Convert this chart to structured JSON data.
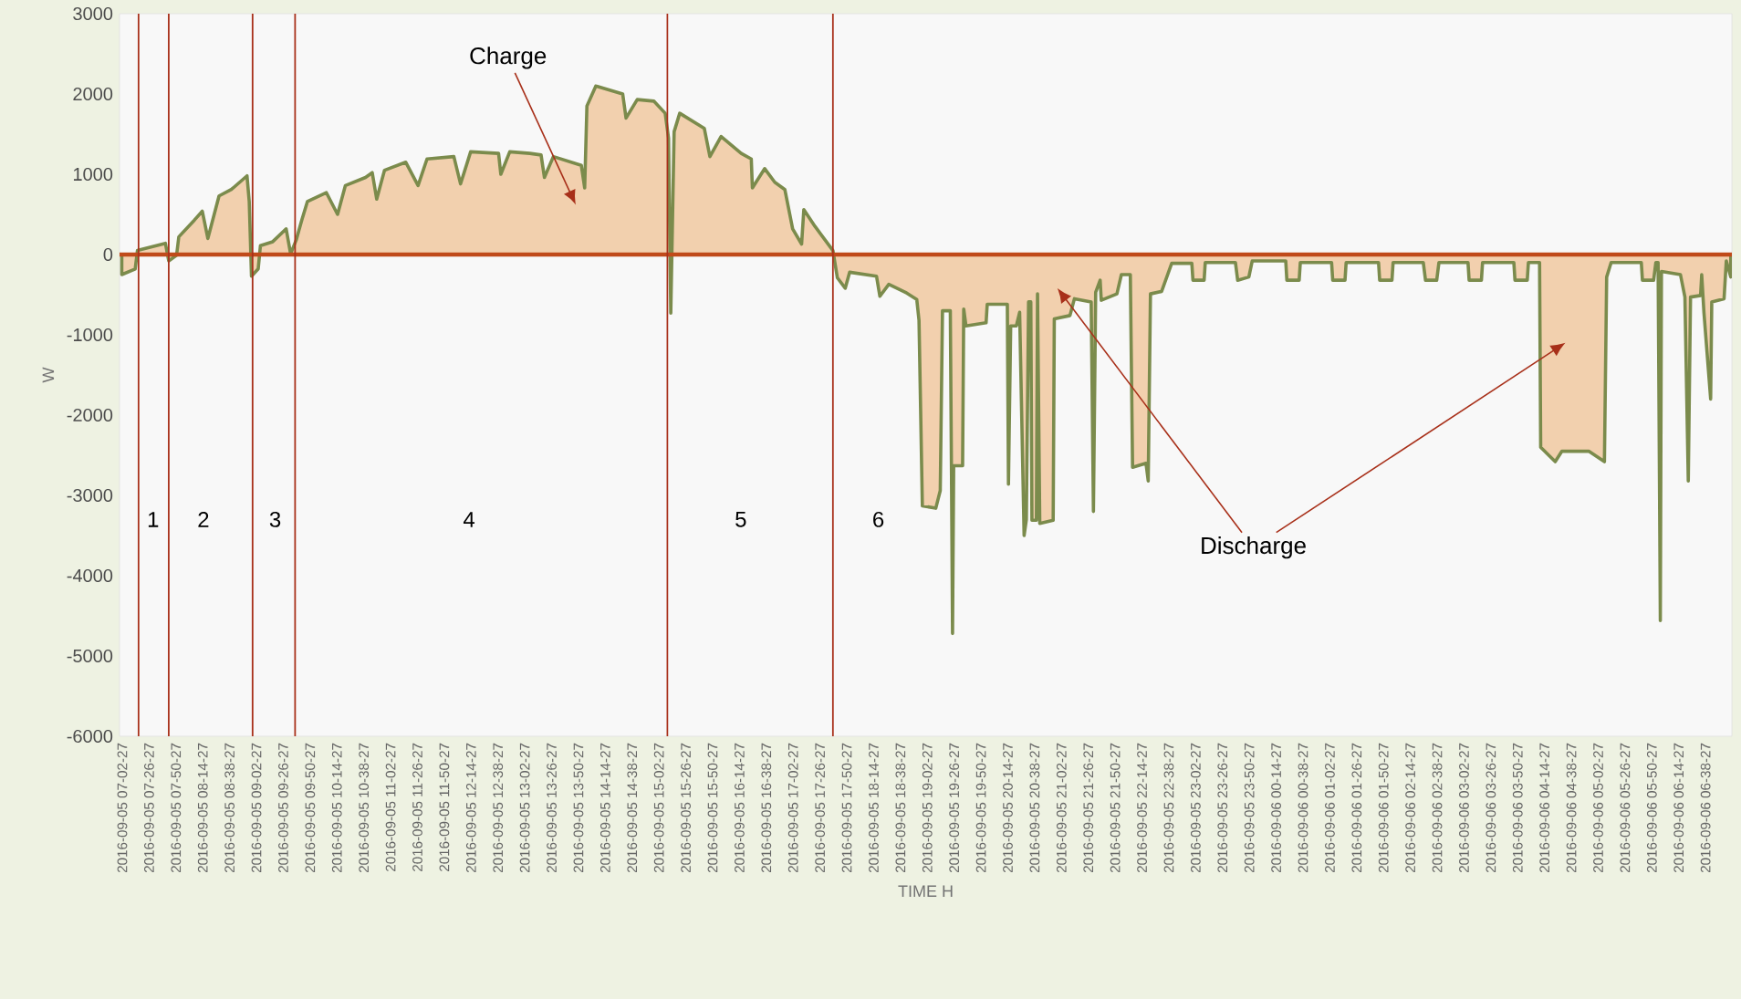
{
  "chart_data": {
    "type": "area",
    "xlabel": "TIME H",
    "ylabel": "W",
    "xlim": [
      "2016-09-05T07:00",
      "2016-09-06T07:02"
    ],
    "ylim": [
      -6000,
      3000
    ],
    "yticks": [
      -6000,
      -5000,
      -4000,
      -3000,
      -2000,
      -1000,
      0,
      1000,
      2000,
      3000
    ],
    "xticks": [
      {
        "value": "2016-09-05T07:02:27",
        "label": "2016-09-05 07-02-27"
      },
      {
        "value": "2016-09-05T07:26:27",
        "label": "2016-09-05 07-26-27"
      },
      {
        "value": "2016-09-05T07:50:27",
        "label": "2016-09-05 07-50-27"
      },
      {
        "value": "2016-09-05T08:14:27",
        "label": "2016-09-05 08-14-27"
      },
      {
        "value": "2016-09-05T08:38:27",
        "label": "2016-09-05 08-38-27"
      },
      {
        "value": "2016-09-05T09:02:27",
        "label": "2016-09-05 09-02-27"
      },
      {
        "value": "2016-09-05T09:26:27",
        "label": "2016-09-05 09-26-27"
      },
      {
        "value": "2016-09-05T09:50:27",
        "label": "2016-09-05 09-50-27"
      },
      {
        "value": "2016-09-05T10:14:27",
        "label": "2016-09-05 10-14-27"
      },
      {
        "value": "2016-09-05T10:38:27",
        "label": "2016-09-05 10-38-27"
      },
      {
        "value": "2016-09-05T11:02:27",
        "label": "2016-09-05 11-02-27"
      },
      {
        "value": "2016-09-05T11:26:27",
        "label": "2016-09-05 11-26-27"
      },
      {
        "value": "2016-09-05T11:50:27",
        "label": "2016-09-05 11-50-27"
      },
      {
        "value": "2016-09-05T12:14:27",
        "label": "2016-09-05 12-14-27"
      },
      {
        "value": "2016-09-05T12:38:27",
        "label": "2016-09-05 12-38-27"
      },
      {
        "value": "2016-09-05T13:02:27",
        "label": "2016-09-05 13-02-27"
      },
      {
        "value": "2016-09-05T13:26:27",
        "label": "2016-09-05 13-26-27"
      },
      {
        "value": "2016-09-05T13:50:27",
        "label": "2016-09-05 13-50-27"
      },
      {
        "value": "2016-09-05T14:14:27",
        "label": "2016-09-05 14-14-27"
      },
      {
        "value": "2016-09-05T14:38:27",
        "label": "2016-09-05 14-38-27"
      },
      {
        "value": "2016-09-05T15:02:27",
        "label": "2016-09-05 15-02-27"
      },
      {
        "value": "2016-09-05T15:26:27",
        "label": "2016-09-05 15-26-27"
      },
      {
        "value": "2016-09-05T15:50:27",
        "label": "2016-09-05 15-50-27"
      },
      {
        "value": "2016-09-05T16:14:27",
        "label": "2016-09-05 16-14-27"
      },
      {
        "value": "2016-09-05T16:38:27",
        "label": "2016-09-05 16-38-27"
      },
      {
        "value": "2016-09-05T17:02:27",
        "label": "2016-09-05 17-02-27"
      },
      {
        "value": "2016-09-05T17:26:27",
        "label": "2016-09-05 17-26-27"
      },
      {
        "value": "2016-09-05T17:50:27",
        "label": "2016-09-05 17-50-27"
      },
      {
        "value": "2016-09-05T18:14:27",
        "label": "2016-09-05 18-14-27"
      },
      {
        "value": "2016-09-05T18:38:27",
        "label": "2016-09-05 18-38-27"
      },
      {
        "value": "2016-09-05T19:02:27",
        "label": "2016-09-05 19-02-27"
      },
      {
        "value": "2016-09-05T19:26:27",
        "label": "2016-09-05 19-26-27"
      },
      {
        "value": "2016-09-05T19:50:27",
        "label": "2016-09-05 19-50-27"
      },
      {
        "value": "2016-09-05T20:14:27",
        "label": "2016-09-05 20-14-27"
      },
      {
        "value": "2016-09-05T20:38:27",
        "label": "2016-09-05 20-38-27"
      },
      {
        "value": "2016-09-05T21:02:27",
        "label": "2016-09-05 21-02-27"
      },
      {
        "value": "2016-09-05T21:26:27",
        "label": "2016-09-05 21-26-27"
      },
      {
        "value": "2016-09-05T21:50:27",
        "label": "2016-09-05 21-50-27"
      },
      {
        "value": "2016-09-05T22:14:27",
        "label": "2016-09-05 22-14-27"
      },
      {
        "value": "2016-09-05T22:38:27",
        "label": "2016-09-05 22-38-27"
      },
      {
        "value": "2016-09-05T23:02:27",
        "label": "2016-09-05 23-02-27"
      },
      {
        "value": "2016-09-05T23:26:27",
        "label": "2016-09-05 23-26-27"
      },
      {
        "value": "2016-09-05T23:50:27",
        "label": "2016-09-05 23-50-27"
      },
      {
        "value": "2016-09-06T00:14:27",
        "label": "2016-09-06 00-14-27"
      },
      {
        "value": "2016-09-06T00:38:27",
        "label": "2016-09-06 00-38-27"
      },
      {
        "value": "2016-09-06T01:02:27",
        "label": "2016-09-06 01-02-27"
      },
      {
        "value": "2016-09-06T01:26:27",
        "label": "2016-09-06 01-26-27"
      },
      {
        "value": "2016-09-06T01:50:27",
        "label": "2016-09-06 01-50-27"
      },
      {
        "value": "2016-09-06T02:14:27",
        "label": "2016-09-06 02-14-27"
      },
      {
        "value": "2016-09-06T02:38:27",
        "label": "2016-09-06 02-38-27"
      },
      {
        "value": "2016-09-06T03:02:27",
        "label": "2016-09-06 03-02-27"
      },
      {
        "value": "2016-09-06T03:26:27",
        "label": "2016-09-06 03-26-27"
      },
      {
        "value": "2016-09-06T03:50:27",
        "label": "2016-09-06 03-50-27"
      },
      {
        "value": "2016-09-06T04:14:27",
        "label": "2016-09-06 04-14-27"
      },
      {
        "value": "2016-09-06T04:38:27",
        "label": "2016-09-06 04-38-27"
      },
      {
        "value": "2016-09-06T05:02:27",
        "label": "2016-09-06 05-02-27"
      },
      {
        "value": "2016-09-06T05:26:27",
        "label": "2016-09-06 05-26-27"
      },
      {
        "value": "2016-09-06T05:50:27",
        "label": "2016-09-06 05-50-27"
      },
      {
        "value": "2016-09-06T06:14:27",
        "label": "2016-09-06 06-14-27"
      },
      {
        "value": "2016-09-06T06:38:27",
        "label": "2016-09-06 06-38-27"
      }
    ],
    "series": [
      {
        "color": "#f2d0ae",
        "x": [
          "2016-09-05T07:02",
          "2016-09-05T07:14",
          "2016-09-05T07:16",
          "2016-09-05T07:41",
          "2016-09-05T07:44",
          "2016-09-05T07:51",
          "2016-09-05T07:53",
          "2016-09-05T08:07",
          "2016-09-05T08:14",
          "2016-09-05T08:19",
          "2016-09-05T08:29",
          "2016-09-05T08:40",
          "2016-09-05T08:54",
          "2016-09-05T08:56",
          "2016-09-05T08:58",
          "2016-09-05T09:04",
          "2016-09-05T09:06",
          "2016-09-05T09:17",
          "2016-09-05T09:29",
          "2016-09-05T09:33",
          "2016-09-05T09:38",
          "2016-09-05T09:43",
          "2016-09-05T09:48",
          "2016-09-05T10:05",
          "2016-09-05T10:15",
          "2016-09-05T10:22",
          "2016-09-05T10:40",
          "2016-09-05T10:46",
          "2016-09-05T10:50",
          "2016-09-05T10:57",
          "2016-09-05T11:16",
          "2016-09-05T11:27",
          "2016-09-05T11:35",
          "2016-09-05T11:59",
          "2016-09-05T12:05",
          "2016-09-05T12:14",
          "2016-09-05T12:39",
          "2016-09-05T12:41",
          "2016-09-05T12:49",
          "2016-09-05T13:07",
          "2016-09-05T13:17",
          "2016-09-05T13:20",
          "2016-09-05T13:28",
          "2016-09-05T13:53",
          "2016-09-05T13:56",
          "2016-09-05T13:58",
          "2016-09-05T14:06",
          "2016-09-05T14:30",
          "2016-09-05T14:33",
          "2016-09-05T14:43",
          "2016-09-05T14:58",
          "2016-09-05T15:08",
          "2016-09-05T15:11",
          "2016-09-05T15:13",
          "2016-09-05T15:16",
          "2016-09-05T15:21",
          "2016-09-05T15:43",
          "2016-09-05T15:48",
          "2016-09-05T15:58",
          "2016-09-05T16:16",
          "2016-09-05T16:25",
          "2016-09-05T16:26",
          "2016-09-05T16:37",
          "2016-09-05T16:46",
          "2016-09-05T16:55",
          "2016-09-05T17:02",
          "2016-09-05T17:10",
          "2016-09-05T17:12",
          "2016-09-05T17:22",
          "2016-09-05T17:38",
          "2016-09-05T17:42",
          "2016-09-05T17:49",
          "2016-09-05T17:53",
          "2016-09-05T18:17",
          "2016-09-05T18:20",
          "2016-09-05T18:28",
          "2016-09-05T18:44",
          "2016-09-05T18:53",
          "2016-09-05T18:55",
          "2016-09-05T18:58",
          "2016-09-05T19:10",
          "2016-09-05T19:14",
          "2016-09-05T19:16",
          "2016-09-05T19:23",
          "2016-09-05T19:24",
          "2016-09-05T19:25",
          "2016-09-05T19:26",
          "2016-09-05T19:34",
          "2016-09-05T19:35",
          "2016-09-05T19:37",
          "2016-09-05T19:55",
          "2016-09-05T19:56",
          "2016-09-05T20:14",
          "2016-09-05T20:15",
          "2016-09-05T20:17",
          "2016-09-05T20:22",
          "2016-09-05T20:25",
          "2016-09-05T20:29",
          "2016-09-05T20:31",
          "2016-09-05T20:33",
          "2016-09-05T20:35",
          "2016-09-05T20:36",
          "2016-09-05T20:40",
          "2016-09-05T20:41",
          "2016-09-05T20:43",
          "2016-09-05T20:55",
          "2016-09-05T20:56",
          "2016-09-05T21:10",
          "2016-09-05T21:14",
          "2016-09-05T21:29",
          "2016-09-05T21:31",
          "2016-09-05T21:33",
          "2016-09-05T21:37",
          "2016-09-05T21:38",
          "2016-09-05T21:52",
          "2016-09-05T21:56",
          "2016-09-05T22:04",
          "2016-09-05T22:06",
          "2016-09-05T22:18",
          "2016-09-05T22:20",
          "2016-09-05T22:22",
          "2016-09-05T22:32",
          "2016-09-05T22:41",
          "2016-09-05T22:59",
          "2016-09-05T23:00",
          "2016-09-05T23:10",
          "2016-09-05T23:11",
          "2016-09-05T23:38",
          "2016-09-05T23:40",
          "2016-09-05T23:50",
          "2016-09-05T23:53",
          "2016-09-06T00:23",
          "2016-09-06T00:24",
          "2016-09-06T00:35",
          "2016-09-06T00:36",
          "2016-09-06T01:04",
          "2016-09-06T01:05",
          "2016-09-06T01:16",
          "2016-09-06T01:17",
          "2016-09-06T01:46",
          "2016-09-06T01:47",
          "2016-09-06T01:58",
          "2016-09-06T01:59",
          "2016-09-06T02:26",
          "2016-09-06T02:28",
          "2016-09-06T02:38",
          "2016-09-06T02:40",
          "2016-09-06T03:06",
          "2016-09-06T03:07",
          "2016-09-06T03:18",
          "2016-09-06T03:19",
          "2016-09-06T03:47",
          "2016-09-06T03:48",
          "2016-09-06T03:59",
          "2016-09-06T04:00",
          "2016-09-06T04:10",
          "2016-09-06T04:11",
          "2016-09-06T04:24",
          "2016-09-06T04:30",
          "2016-09-06T04:54",
          "2016-09-06T05:08",
          "2016-09-06T05:10",
          "2016-09-06T05:14",
          "2016-09-06T05:41",
          "2016-09-06T05:42",
          "2016-09-06T05:52",
          "2016-09-06T05:54",
          "2016-09-06T05:56",
          "2016-09-06T05:58",
          "2016-09-06T05:59",
          "2016-09-06T06:16",
          "2016-09-06T06:20",
          "2016-09-06T06:23",
          "2016-09-06T06:25",
          "2016-09-06T06:34",
          "2016-09-06T06:35",
          "2016-09-06T06:37",
          "2016-09-06T06:43",
          "2016-09-06T06:44",
          "2016-09-06T06:55",
          "2016-09-06T06:57",
          "2016-09-06T07:01"
        ],
        "values": [
          -250,
          -180,
          50,
          140,
          -80,
          -10,
          220,
          430,
          540,
          200,
          730,
          810,
          980,
          660,
          -270,
          -180,
          110,
          160,
          320,
          10,
          180,
          430,
          660,
          770,
          500,
          860,
          960,
          1020,
          690,
          1050,
          1150,
          860,
          1190,
          1220,
          880,
          1280,
          1260,
          1000,
          1280,
          1260,
          1240,
          960,
          1220,
          1110,
          830,
          1850,
          2100,
          2000,
          1700,
          1930,
          1910,
          1760,
          1450,
          -730,
          1530,
          1760,
          1570,
          1220,
          1470,
          1260,
          1190,
          830,
          1070,
          900,
          810,
          320,
          130,
          560,
          350,
          50,
          -290,
          -420,
          -220,
          -270,
          -520,
          -370,
          -480,
          -560,
          -820,
          -3130,
          -3160,
          -2940,
          -700,
          -700,
          -2630,
          -4720,
          -2630,
          -2630,
          -680,
          -890,
          -850,
          -620,
          -620,
          -2860,
          -890,
          -890,
          -720,
          -3500,
          -3300,
          -590,
          -590,
          -3310,
          -3310,
          -490,
          -3350,
          -3310,
          -800,
          -760,
          -550,
          -590,
          -3200,
          -470,
          -320,
          -570,
          -490,
          -250,
          -250,
          -2650,
          -2600,
          -2820,
          -490,
          -460,
          -110,
          -110,
          -320,
          -320,
          -100,
          -100,
          -320,
          -280,
          -80,
          -80,
          -320,
          -320,
          -100,
          -100,
          -320,
          -320,
          -100,
          -100,
          -320,
          -320,
          -100,
          -100,
          -320,
          -320,
          -100,
          -100,
          -320,
          -320,
          -100,
          -100,
          -320,
          -320,
          -100,
          -100,
          -2400,
          -2580,
          -2450,
          -2450,
          -2580,
          -280,
          -100,
          -100,
          -320,
          -320,
          -100,
          -100,
          -4560,
          -210,
          -250,
          -530,
          -2820,
          -530,
          -510,
          -250,
          -720,
          -1800,
          -590,
          -550,
          -80,
          -280
        ]
      }
    ],
    "ref_lines": [
      {
        "axis": "y",
        "value": 0,
        "color": "#c04a1a"
      },
      {
        "axis": "x",
        "value": "2016-09-05T07:17",
        "color": "#a8301a"
      },
      {
        "axis": "x",
        "value": "2016-09-05T07:44",
        "color": "#a8301a"
      },
      {
        "axis": "x",
        "value": "2016-09-05T08:59",
        "color": "#a8301a"
      },
      {
        "axis": "x",
        "value": "2016-09-05T09:37",
        "color": "#a8301a"
      },
      {
        "axis": "x",
        "value": "2016-09-05T15:10",
        "color": "#a8301a"
      },
      {
        "axis": "x",
        "value": "2016-09-05T17:38",
        "color": "#a8301a"
      }
    ],
    "annotations": [
      "1",
      "2",
      "3",
      "4",
      "5",
      "6",
      "Charge",
      "Discharge"
    ]
  }
}
